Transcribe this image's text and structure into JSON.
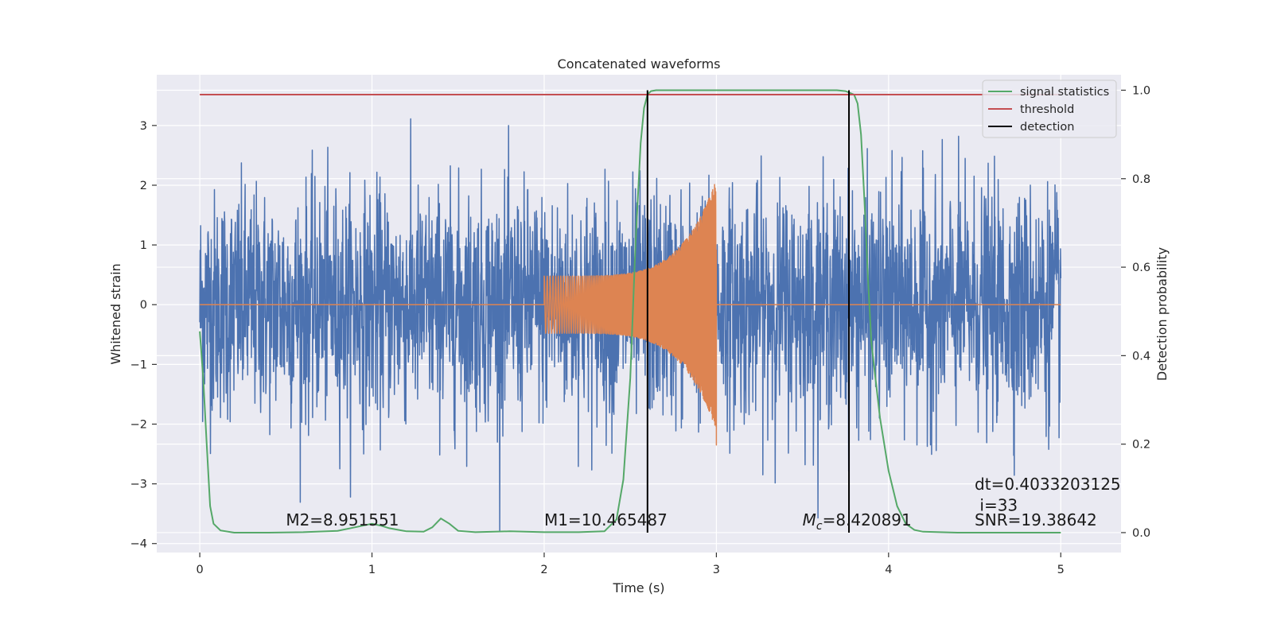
{
  "chart_data": {
    "type": "line",
    "title": "Concatenated waveforms",
    "xlabel": "Time (s)",
    "ylabel_left": "Whitened strain",
    "ylabel_right": "Detection probability",
    "xlim": [
      -0.25,
      5.35
    ],
    "ylim_left": [
      -4.15,
      3.85
    ],
    "ylim_right": [
      -0.045,
      1.035
    ],
    "x_ticks": [
      0,
      1,
      2,
      3,
      4,
      5
    ],
    "x_tick_labels": [
      "0",
      "1",
      "2",
      "3",
      "4",
      "5"
    ],
    "y_ticks_left": [
      -4,
      -3,
      -2,
      -1,
      0,
      1,
      2,
      3
    ],
    "y_tick_labels_left": [
      "−4",
      "−3",
      "−2",
      "−1",
      "0",
      "1",
      "2",
      "3"
    ],
    "y_ticks_right": [
      0.0,
      0.2,
      0.4,
      0.6,
      0.8,
      1.0
    ],
    "y_tick_labels_right": [
      "0.0",
      "0.2",
      "0.4",
      "0.6",
      "0.8",
      "1.0"
    ],
    "grid": true,
    "legend_position": "top-right",
    "series": [
      {
        "name": "",
        "kind": "whitened-strain-noise",
        "axis": "left",
        "color": "#4c72b0",
        "x_range": [
          0,
          5
        ],
        "envelope_max": 3.5,
        "envelope_min": -3.8
      },
      {
        "name": "",
        "kind": "injected-chirp",
        "axis": "left",
        "color": "#dd8452",
        "x_range": [
          0,
          5
        ],
        "chirp_start": 2.0,
        "chirp_end": 3.0,
        "amplitude_start": 0.48,
        "amplitude_end": 2.1,
        "trough_end": -2.35
      },
      {
        "name": "signal statistics",
        "axis": "right",
        "color": "#55a868",
        "x": [
          0,
          0.02,
          0.04,
          0.06,
          0.08,
          0.12,
          0.2,
          0.4,
          0.6,
          0.8,
          0.9,
          1.0,
          1.05,
          1.1,
          1.2,
          1.3,
          1.35,
          1.4,
          1.45,
          1.5,
          1.6,
          1.8,
          2.0,
          2.2,
          2.35,
          2.42,
          2.46,
          2.5,
          2.53,
          2.56,
          2.58,
          2.6,
          2.62,
          2.65,
          2.7,
          2.9,
          3.1,
          3.3,
          3.5,
          3.7,
          3.75,
          3.8,
          3.82,
          3.84,
          3.86,
          3.88,
          3.9,
          3.95,
          4.0,
          4.05,
          4.1,
          4.15,
          4.2,
          4.4,
          4.6,
          4.8,
          5.0
        ],
        "y": [
          0.455,
          0.35,
          0.2,
          0.06,
          0.02,
          0.005,
          0.0,
          0.0,
          0.001,
          0.004,
          0.012,
          0.02,
          0.016,
          0.01,
          0.003,
          0.002,
          0.012,
          0.032,
          0.02,
          0.004,
          0.001,
          0.003,
          0.001,
          0.001,
          0.003,
          0.03,
          0.12,
          0.35,
          0.65,
          0.88,
          0.96,
          0.99,
          0.998,
          1.0,
          1.0,
          1.0,
          1.0,
          1.0,
          1.0,
          1.0,
          0.998,
          0.99,
          0.97,
          0.9,
          0.75,
          0.58,
          0.43,
          0.26,
          0.14,
          0.06,
          0.02,
          0.006,
          0.002,
          0.0,
          0.0,
          0.0,
          0.0
        ]
      },
      {
        "name": "threshold",
        "axis": "right",
        "color": "#c44e52",
        "x": [
          0,
          5
        ],
        "y": [
          0.99,
          0.99
        ]
      },
      {
        "name": "detection",
        "axis": "right",
        "color": "#000000",
        "lines": [
          {
            "x": 2.6,
            "y": [
              0.0,
              1.0
            ]
          },
          {
            "x": 3.77,
            "y": [
              0.0,
              1.0
            ]
          }
        ]
      }
    ],
    "annotations": [
      {
        "text": "M2=8.951551",
        "x": 0.5,
        "y": -3.7
      },
      {
        "text": "M1=10.465487",
        "x": 2.0,
        "y": -3.7
      },
      {
        "prefix": "M",
        "sub": "c",
        "text": "=8.420891",
        "x": 3.5,
        "y": -3.7
      },
      {
        "text": "dt=0.4033203125",
        "x": 4.5,
        "y": -3.1
      },
      {
        "text": " i=33",
        "x": 4.5,
        "y": -3.45
      },
      {
        "text": "SNR=19.38642",
        "x": 4.5,
        "y": -3.7
      }
    ]
  }
}
